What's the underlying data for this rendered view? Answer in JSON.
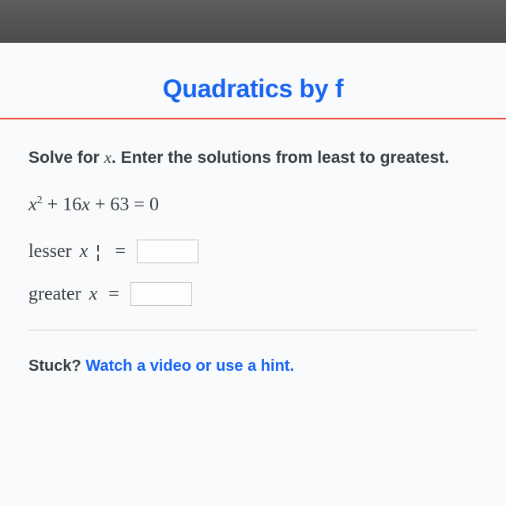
{
  "header": {
    "title_visible": "Quadratics by f",
    "color": "#1865f2",
    "fontsize": 32
  },
  "divider": {
    "color": "#e84d39"
  },
  "prompt": {
    "pre": "Solve for ",
    "var": "x",
    "post": ". Enter the solutions from least to greatest."
  },
  "equation": {
    "display": "x² + 16x + 63 = 0",
    "lhs_variable": "x",
    "exponent": "2",
    "term2_coef": "16",
    "term3_const": "63",
    "rhs": "0"
  },
  "answers": {
    "lesser": {
      "label": "lesser",
      "var": "x",
      "eq": "=",
      "value": ""
    },
    "greater": {
      "label": "greater",
      "var": "x",
      "eq": "=",
      "value": ""
    },
    "input_border": "#bfc2c5"
  },
  "stuck": {
    "label": "Stuck?",
    "link_text": "Watch a video or use a hint."
  },
  "colors": {
    "bg": "#f9fafb",
    "text": "#3b3e40",
    "link": "#1865f2"
  }
}
